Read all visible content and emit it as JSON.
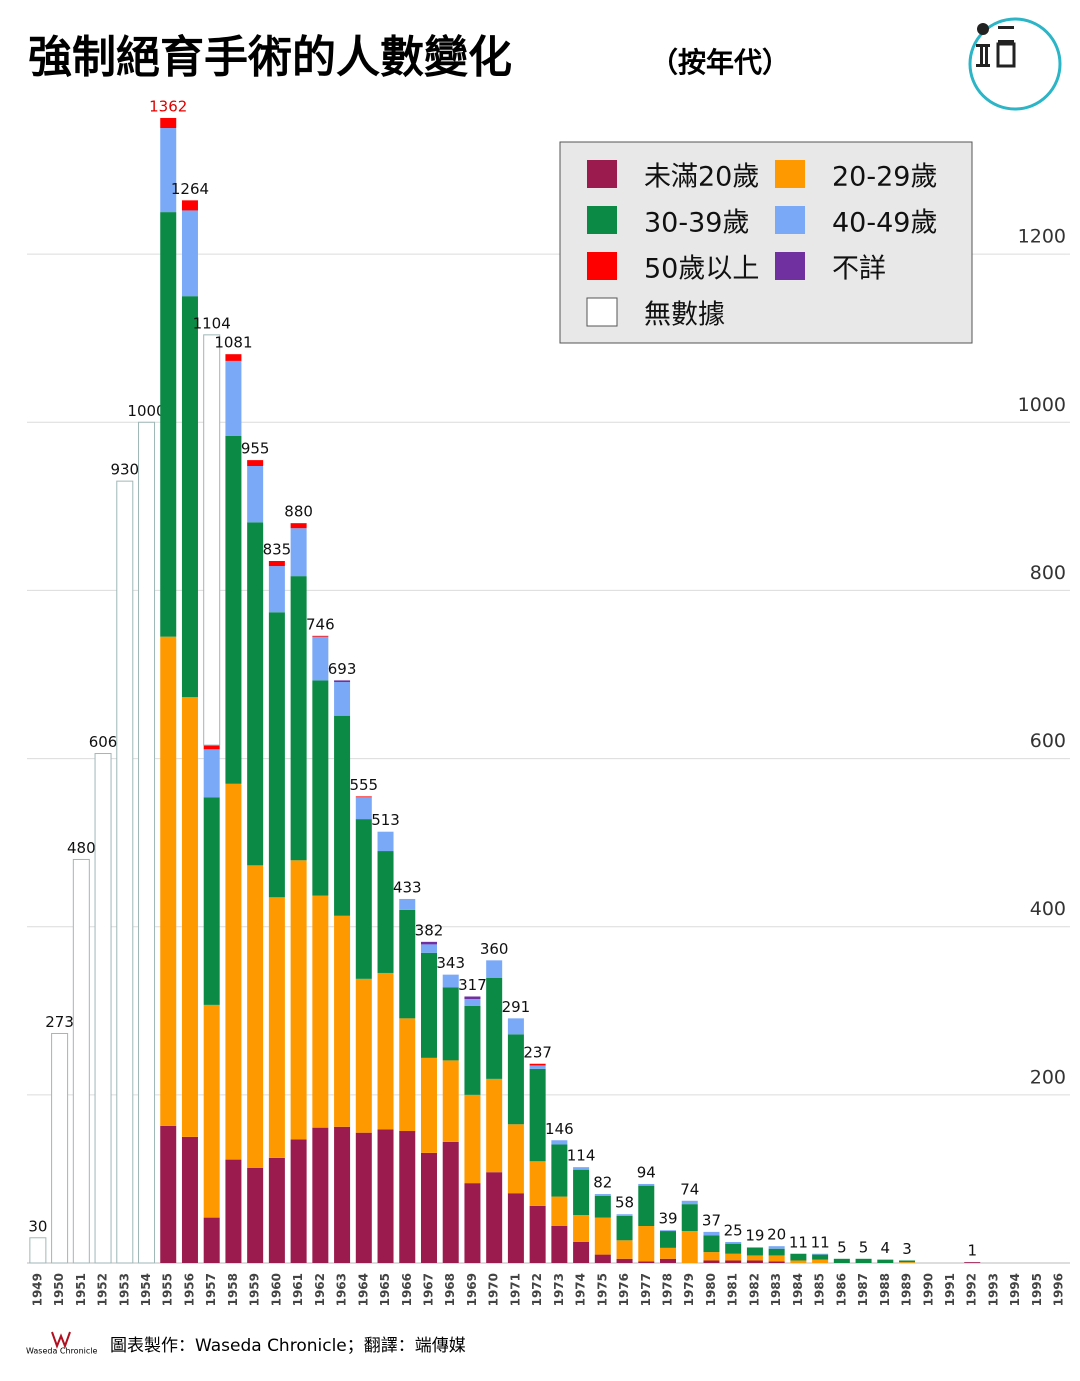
{
  "chart_data": {
    "type": "stacked-bar",
    "title": "強制絕育手術的人數變化",
    "subtitle": "（按年代）",
    "source": "圖表製作：Waseda Chronicle；翻譯：端傳媒",
    "logo_text": "Waseda Chronicle",
    "categories": [
      "1949",
      "1950",
      "1951",
      "1952",
      "1953",
      "1954",
      "1955",
      "1956",
      "1957",
      "1958",
      "1959",
      "1960",
      "1961",
      "1962",
      "1963",
      "1964",
      "1965",
      "1966",
      "1967",
      "1968",
      "1969",
      "1970",
      "1971",
      "1972",
      "1973",
      "1974",
      "1975",
      "1976",
      "1977",
      "1978",
      "1979",
      "1980",
      "1981",
      "1982",
      "1983",
      "1984",
      "1985",
      "1986",
      "1987",
      "1988",
      "1989",
      "1990",
      "1991",
      "1992",
      "1993",
      "1994",
      "1995",
      "1996"
    ],
    "totals": [
      30,
      273,
      480,
      606,
      930,
      1000,
      1362,
      1264,
      1104,
      1081,
      955,
      835,
      880,
      746,
      693,
      555,
      513,
      433,
      382,
      343,
      317,
      360,
      291,
      237,
      146,
      114,
      82,
      58,
      94,
      39,
      74,
      37,
      25,
      19,
      20,
      11,
      11,
      5,
      5,
      4,
      3,
      null,
      null,
      1,
      null,
      null,
      null,
      null
    ],
    "highlight_total_color": "#e00000",
    "series": [
      {
        "name": "未滿20歲",
        "color": "#9b1b4f",
        "values": [
          null,
          null,
          null,
          null,
          null,
          null,
          163,
          150,
          54,
          123,
          113,
          125,
          147,
          161,
          162,
          155,
          159,
          157,
          131,
          144,
          95,
          108,
          83,
          68,
          44,
          25,
          10,
          5,
          2,
          5,
          0,
          3,
          3,
          3,
          2,
          0,
          0,
          0,
          0,
          0,
          0,
          null,
          null,
          1,
          null,
          null,
          null,
          null
        ]
      },
      {
        "name": "20-29歲",
        "color": "#ff9900",
        "values": [
          null,
          null,
          null,
          null,
          null,
          null,
          582,
          523,
          253,
          447,
          360,
          310,
          332,
          276,
          251,
          183,
          186,
          134,
          113,
          97,
          105,
          111,
          82,
          53,
          35,
          32,
          44,
          22,
          42,
          13,
          38,
          10,
          8,
          6,
          7,
          3,
          4,
          0,
          0,
          0,
          1,
          null,
          null,
          0,
          null,
          null,
          null,
          null
        ]
      },
      {
        "name": "30-39歲",
        "color": "#0a8a45",
        "values": [
          null,
          null,
          null,
          null,
          null,
          null,
          505,
          477,
          247,
          414,
          408,
          339,
          338,
          256,
          238,
          190,
          145,
          129,
          125,
          87,
          106,
          120,
          107,
          110,
          62,
          54,
          26,
          29,
          48,
          20,
          32,
          20,
          12,
          9,
          8,
          8,
          6,
          5,
          5,
          4,
          2,
          null,
          null,
          0,
          null,
          null,
          null,
          null
        ]
      },
      {
        "name": "40-49歲",
        "color": "#7aa9f7",
        "values": [
          null,
          null,
          null,
          null,
          null,
          null,
          100,
          102,
          57,
          89,
          67,
          55,
          57,
          52,
          40,
          26,
          23,
          13,
          10,
          15,
          8,
          21,
          19,
          4,
          5,
          3,
          2,
          2,
          2,
          1,
          4,
          4,
          2,
          1,
          3,
          0,
          1,
          0,
          0,
          0,
          0,
          null,
          null,
          0,
          null,
          null,
          null,
          null
        ]
      },
      {
        "name": "50歲以上",
        "color": "#ff0000",
        "values": [
          null,
          null,
          null,
          null,
          null,
          null,
          12,
          12,
          5,
          8,
          7,
          6,
          6,
          1,
          0,
          1,
          0,
          0,
          0,
          0,
          0,
          0,
          0,
          2,
          0,
          0,
          0,
          0,
          0,
          0,
          0,
          0,
          0,
          0,
          0,
          0,
          0,
          0,
          0,
          0,
          0,
          null,
          null,
          0,
          null,
          null,
          null,
          null
        ]
      },
      {
        "name": "不詳",
        "color": "#7030a0",
        "values": [
          null,
          null,
          null,
          null,
          null,
          null,
          0,
          0,
          0,
          0,
          0,
          0,
          0,
          0,
          2,
          0,
          0,
          0,
          3,
          0,
          3,
          0,
          0,
          0,
          0,
          0,
          0,
          0,
          0,
          0,
          0,
          0,
          0,
          0,
          0,
          0,
          0,
          0,
          0,
          0,
          0,
          null,
          null,
          0,
          null,
          null,
          null,
          null
        ]
      },
      {
        "name": "無數據",
        "color": "#ffffff",
        "values": [
          30,
          273,
          480,
          606,
          930,
          1000,
          null,
          null,
          488,
          null,
          null,
          null,
          null,
          null,
          null,
          null,
          null,
          null,
          null,
          null,
          null,
          null,
          null,
          null,
          null,
          null,
          null,
          null,
          null,
          null,
          null,
          null,
          null,
          null,
          null,
          null,
          null,
          null,
          null,
          null,
          null,
          null,
          null,
          null,
          null,
          null,
          null,
          null
        ]
      }
    ],
    "ylim": [
      0,
      1400
    ],
    "yticks": [
      200,
      400,
      600,
      800,
      1000,
      1200
    ],
    "grid": true,
    "legend": "top-right"
  }
}
